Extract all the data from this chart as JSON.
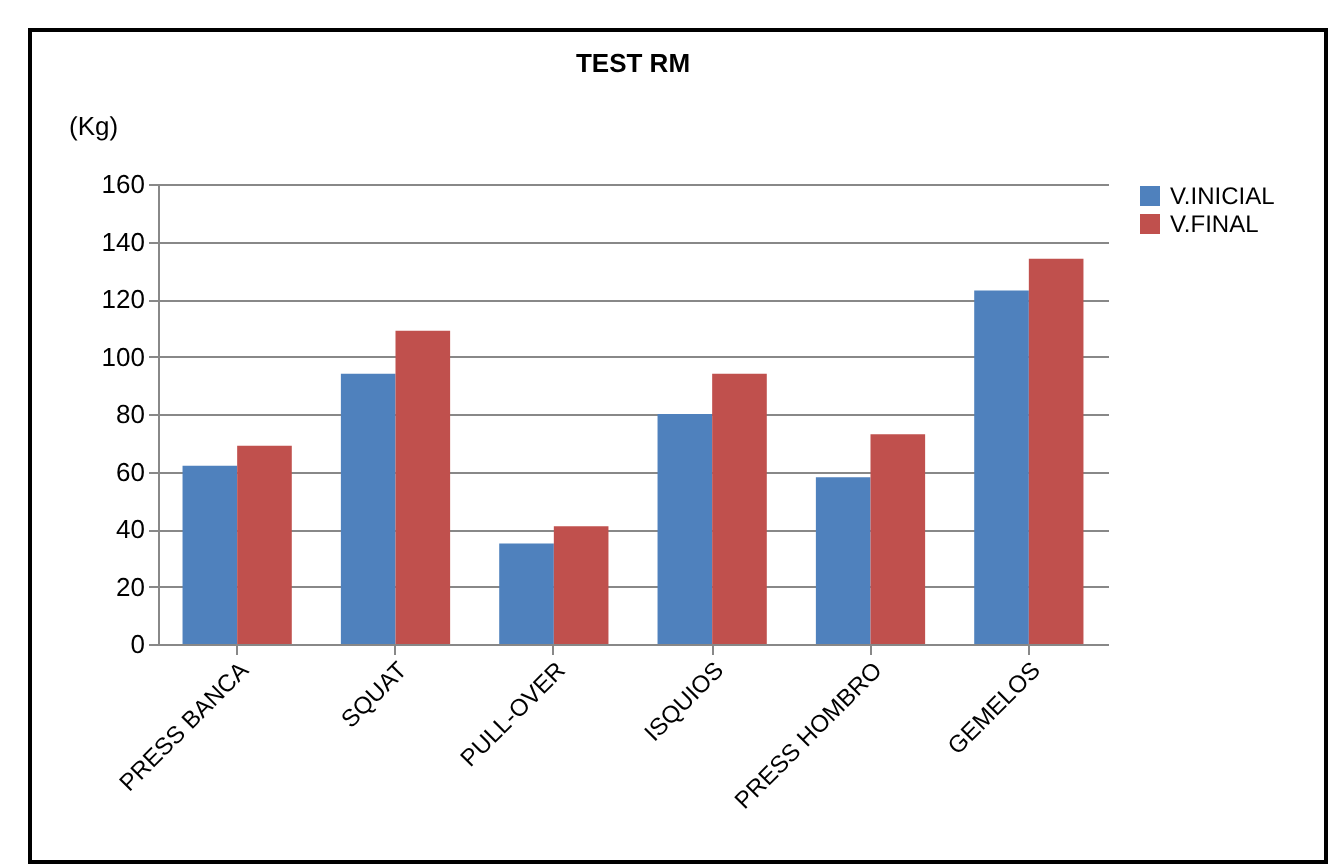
{
  "chart_data": {
    "type": "bar",
    "title": "TEST  RM",
    "ylabel": "(Kg)",
    "categories": [
      "PRESS BANCA",
      "SQUAT",
      "PULL-OVER",
      "ISQUIOS",
      "PRESS HOMBRO",
      "GEMELOS"
    ],
    "series": [
      {
        "name": "V.INICIAL",
        "color": "#4f81bd",
        "values": [
          62,
          94,
          35,
          80,
          58,
          123
        ]
      },
      {
        "name": "V.FINAL",
        "color": "#c0504d",
        "values": [
          69,
          109,
          41,
          94,
          73,
          134
        ]
      }
    ],
    "ylim": [
      0,
      160
    ],
    "yticks": [
      0,
      20,
      40,
      60,
      80,
      100,
      120,
      140,
      160
    ],
    "grid": "y",
    "legend": "right"
  }
}
